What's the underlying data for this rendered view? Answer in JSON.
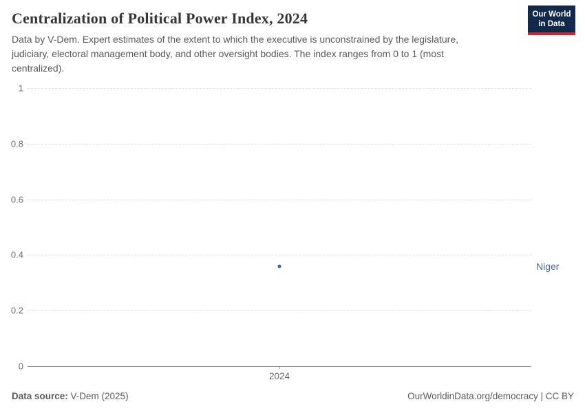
{
  "header": {
    "title": "Centralization of Political Power Index, 2024",
    "subtitle": "Data by V-Dem. Expert estimates of the extent to which the executive is unconstrained by the legislature, judiciary, electoral management body, and other oversight bodies. The index ranges from 0 to 1 (most centralized).",
    "logo": {
      "line1": "Our World",
      "line2": "in Data"
    }
  },
  "chart_data": {
    "type": "scatter",
    "title": "Centralization of Political Power Index, 2024",
    "x": [
      2024
    ],
    "xtick_labels": [
      "2024"
    ],
    "series": [
      {
        "name": "Niger",
        "values": [
          0.36
        ],
        "color": "#3d649d",
        "label_color": "#4c6a9c"
      }
    ],
    "xlabel": "",
    "ylabel": "",
    "ylim": [
      0,
      1
    ],
    "yticks": [
      0,
      0.2,
      0.4,
      0.6,
      0.8,
      1
    ],
    "ytick_labels": [
      "0",
      "0.2",
      "0.4",
      "0.6",
      "0.8",
      "1"
    ],
    "grid": "horizontal-dashed",
    "legend_position": "right-of-point"
  },
  "footer": {
    "source_label": "Data source:",
    "source_value": " V-Dem (2025)",
    "credit": "OurWorldinData.org/democracy | CC BY"
  },
  "colors": {
    "accent_blue": "#3d649d",
    "label_blue": "#4c6a9c",
    "logo_navy": "#12294b",
    "logo_red": "#d1242f",
    "gridline": "#e0e0e0",
    "axis": "#8f8f8f"
  }
}
